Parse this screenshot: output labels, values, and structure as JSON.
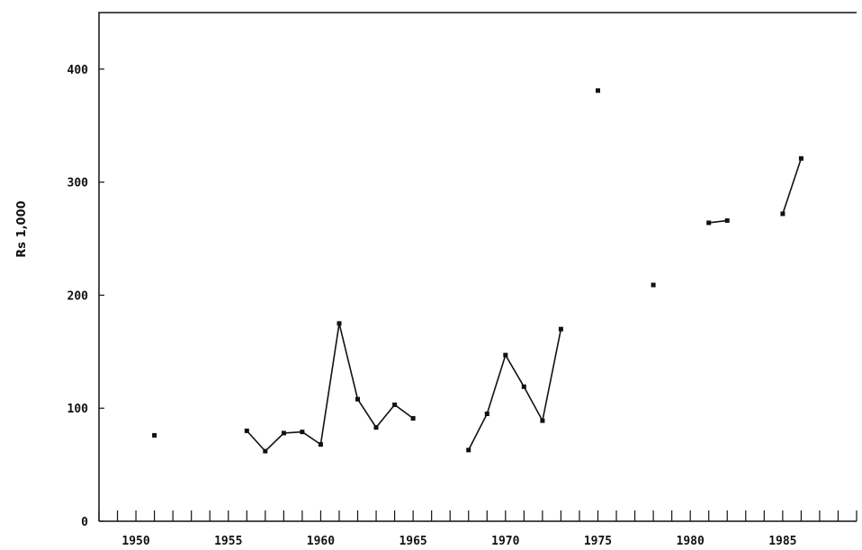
{
  "chart_data": {
    "type": "line",
    "title": "",
    "xlabel": "",
    "ylabel": "Rs 1,000",
    "xlim": [
      1948,
      1989
    ],
    "ylim": [
      0,
      450
    ],
    "xticks": [
      1950,
      1955,
      1960,
      1965,
      1970,
      1975,
      1980,
      1985
    ],
    "xtick_labels": [
      "1950",
      "1955",
      "1960",
      "1965",
      "1970",
      "1975",
      "1980",
      "1985"
    ],
    "yticks": [
      0,
      100,
      200,
      300,
      400
    ],
    "ytick_labels": [
      "0",
      "100",
      "200",
      "300",
      "400"
    ],
    "minor_xtick_step": 1,
    "grid": false,
    "segments": [
      {
        "x": [
          1951
        ],
        "y": [
          76
        ]
      },
      {
        "x": [
          1956,
          1957,
          1958,
          1959,
          1960,
          1961,
          1962,
          1963,
          1964,
          1965
        ],
        "y": [
          80,
          62,
          78,
          79,
          68,
          175,
          108,
          83,
          103,
          91
        ]
      },
      {
        "x": [
          1968,
          1969,
          1970,
          1971,
          1972,
          1973
        ],
        "y": [
          63,
          95,
          147,
          119,
          89,
          170
        ]
      },
      {
        "x": [
          1975
        ],
        "y": [
          381
        ]
      },
      {
        "x": [
          1978
        ],
        "y": [
          209
        ]
      },
      {
        "x": [
          1981,
          1982
        ],
        "y": [
          264,
          266
        ]
      },
      {
        "x": [
          1985,
          1986
        ],
        "y": [
          272,
          321
        ]
      }
    ]
  }
}
